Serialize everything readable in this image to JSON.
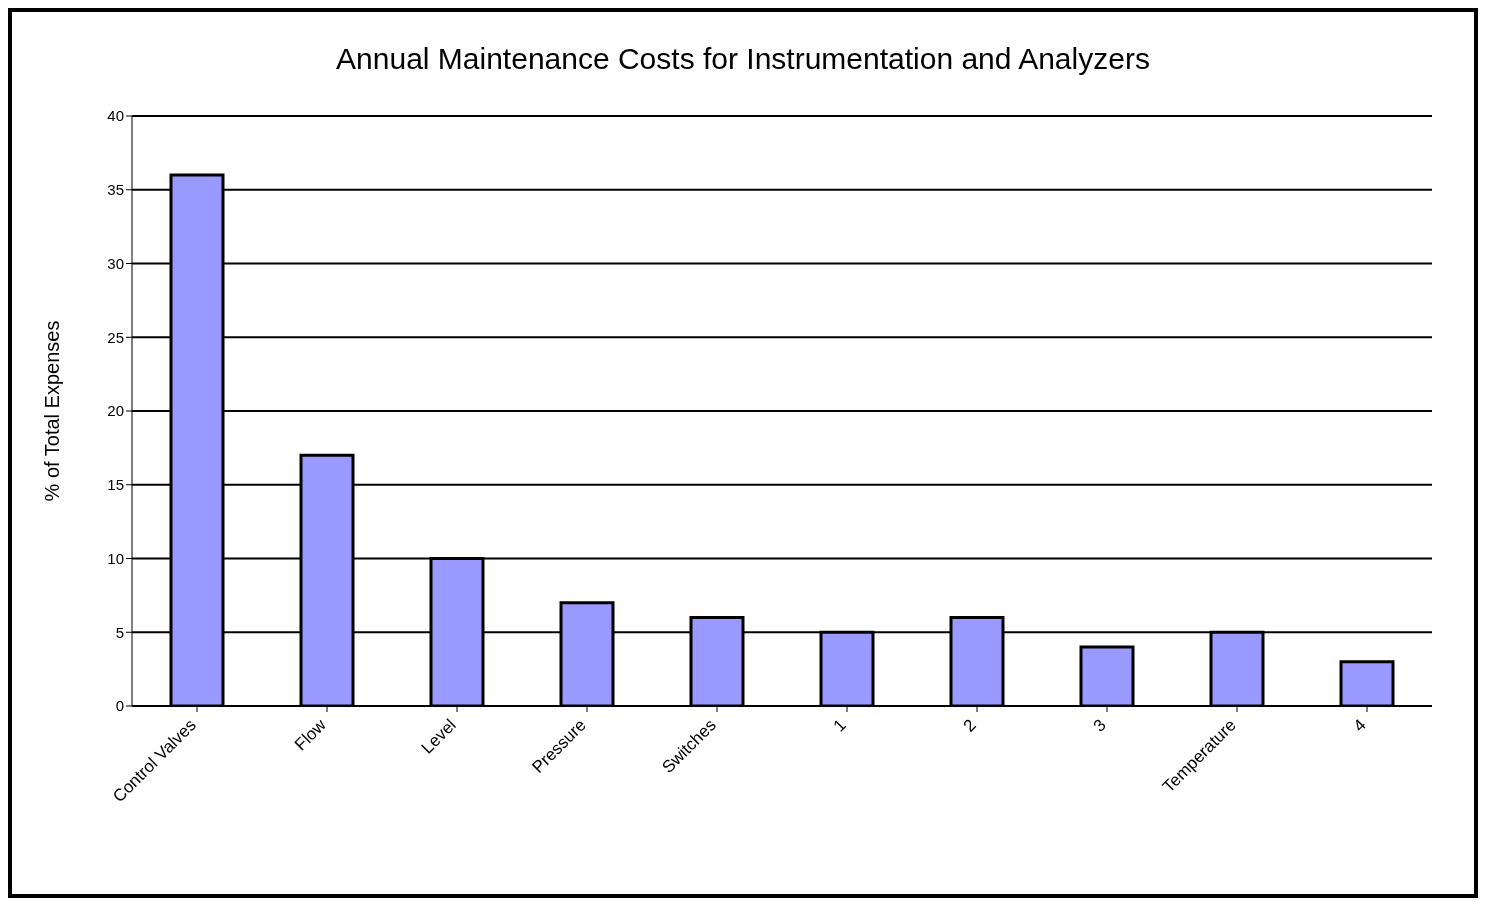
{
  "chart_data": {
    "type": "bar",
    "title": "Annual Maintenance Costs for Instrumentation and Analyzers",
    "ylabel": "% of Total Expenses",
    "categories": [
      "Control Valves",
      "Flow",
      "Level",
      "Pressure",
      "Switches",
      "1",
      "2",
      "3",
      "Temperature",
      "4"
    ],
    "values": [
      36,
      17,
      10,
      7,
      6,
      5,
      6,
      4,
      5,
      3
    ],
    "color": "#9999ff",
    "ylim": [
      0,
      40
    ],
    "yticks": [
      0,
      5,
      10,
      15,
      20,
      25,
      30,
      35,
      40
    ],
    "grid": "y",
    "legend": false
  }
}
